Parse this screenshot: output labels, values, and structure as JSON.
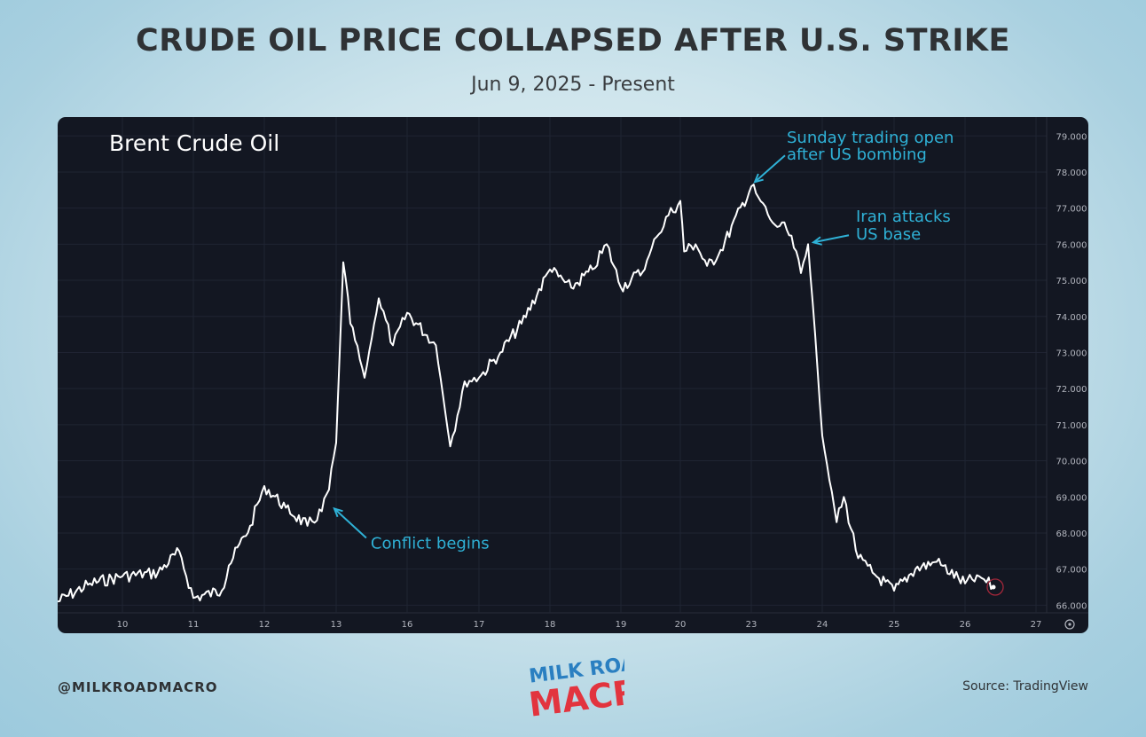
{
  "title": "CRUDE OIL PRICE COLLAPSED AFTER U.S. STRIKE",
  "subtitle": "Jun 9, 2025 - Present",
  "handle": "@MILKROADMACRO",
  "source": "Source: TradingView",
  "logo": {
    "line1": "MILK ROAD",
    "line2": "MACRO"
  },
  "colors": {
    "panel_bg": "#131722",
    "line": "#ffffff",
    "annotation": "#2fb1d6",
    "axis_text": "#b2b5be",
    "logo_blue": "#2a7fc1",
    "logo_red": "#e2343e"
  },
  "chart_data": {
    "type": "line",
    "label": "Brent Crude Oil",
    "ylim": [
      65.5,
      79.3
    ],
    "y_ticks": [
      "66.000",
      "67.000",
      "68.000",
      "69.000",
      "70.000",
      "71.000",
      "72.000",
      "73.000",
      "74.000",
      "75.000",
      "76.000",
      "77.000",
      "78.000",
      "79.000"
    ],
    "x_ticks": [
      "10",
      "11",
      "12",
      "13",
      "16",
      "17",
      "18",
      "19",
      "20",
      "23",
      "24",
      "25",
      "26",
      "27"
    ],
    "grid": true,
    "series": [
      {
        "x": [
          "9",
          "9.5",
          "10",
          "10.5",
          "10.8",
          "11",
          "11.4",
          "11.5",
          "11.8",
          "12",
          "12.3",
          "12.6",
          "12.8",
          "12.9",
          "13",
          "13.1",
          "13.2",
          "13.4",
          "13.6",
          "13.8",
          "16",
          "16.4",
          "16.6",
          "16.8",
          "17",
          "17.3",
          "17.6",
          "18",
          "18.3",
          "18.6",
          "18.8",
          "19",
          "19.4",
          "19.6",
          "19.8",
          "20",
          "20.1",
          "20.4",
          "20.7",
          "21",
          "23",
          "23.1",
          "23.3",
          "23.5",
          "23.6",
          "23.7",
          "23.8",
          "23.9",
          "24",
          "24.2",
          "24.3",
          "24.5",
          "24.7",
          "25",
          "25.3",
          "25.6",
          "26",
          "26.2",
          "26.4"
        ],
        "values": [
          66.1,
          66.6,
          66.8,
          66.9,
          67.5,
          66.2,
          66.4,
          67.1,
          68.2,
          69.3,
          68.7,
          68.2,
          68.6,
          69.2,
          70.5,
          75.5,
          73.8,
          72.3,
          74.5,
          73.2,
          74.1,
          73.2,
          70.4,
          72.2,
          72.3,
          73.0,
          73.8,
          75.3,
          74.8,
          75.3,
          76.0,
          74.8,
          75.3,
          76.2,
          76.8,
          77.2,
          75.8,
          76.0,
          75.4,
          75.7,
          77.6,
          77.3,
          76.6,
          76.4,
          75.9,
          75.2,
          76.0,
          73.5,
          70.7,
          68.3,
          69.0,
          67.3,
          66.9,
          66.4,
          67.0,
          67.2,
          66.6,
          66.8,
          66.5
        ]
      }
    ],
    "annotations": [
      {
        "text": "Conflict begins",
        "x": "12.9",
        "y": 68.7
      },
      {
        "lines": [
          "Sunday trading open",
          "after US bombing"
        ],
        "x": "23",
        "y": 77.6
      },
      {
        "lines": [
          "Iran attacks",
          "US base"
        ],
        "x": "23.8",
        "y": 76.1
      }
    ]
  }
}
